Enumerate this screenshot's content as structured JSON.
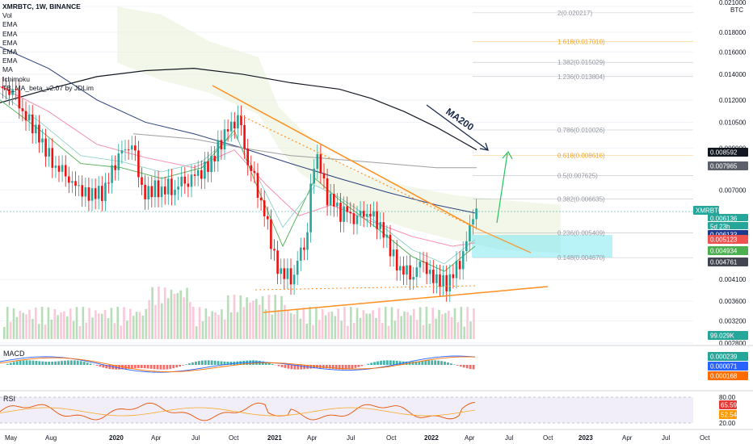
{
  "header": {
    "symbol": "XMRBTC, 1W, BINANCE",
    "indicators": [
      "Vol",
      "EMA",
      "EMA",
      "EMA",
      "EMA",
      "EMA",
      "MA",
      "Ichimoku",
      "TB_MA_beta_v2.07 by JDLim"
    ]
  },
  "price_axis": {
    "currency": "BTC",
    "ticks": [
      "0.021000",
      "0.018000",
      "0.016000",
      "0.014000",
      "0.012000",
      "0.010500",
      "0.009000",
      "0.007000",
      "0.004100",
      "0.003600",
      "0.003200",
      "0.002800"
    ]
  },
  "fib_levels": [
    {
      "label": "2(0.020217)",
      "color": "#9598a1"
    },
    {
      "label": "1.618(0.017010)",
      "color": "#f7a21b"
    },
    {
      "label": "1.382(0.015029)",
      "color": "#9598a1"
    },
    {
      "label": "1.236(0.013804)",
      "color": "#9598a1"
    },
    {
      "label": "0.786(0.010026)",
      "color": "#9598a1"
    },
    {
      "label": "0.618(0.008616)",
      "color": "#f7a21b"
    },
    {
      "label": "0.5(0.007625)",
      "color": "#9598a1"
    },
    {
      "label": "0.382(0.006635)",
      "color": "#9598a1"
    },
    {
      "label": "0.236(0.005409)",
      "color": "#9598a1"
    },
    {
      "label": "0.148(0.004670)",
      "color": "#9598a1"
    }
  ],
  "price_badges": [
    {
      "text": "0.008592",
      "bg": "#131722",
      "fg": "#ffffff"
    },
    {
      "text": "0.007965",
      "bg": "#5d606b",
      "fg": "#ffffff"
    },
    {
      "text": "XMRBTC",
      "bg": "#26a69a",
      "fg": "#ffffff"
    },
    {
      "text": "0.006136",
      "bg": "#26a69a",
      "fg": "#ffffff"
    },
    {
      "text": "5d 23h",
      "bg": "#26a69a",
      "fg": "#ffffff"
    },
    {
      "text": "0.006133",
      "bg": "#1e3a8a",
      "fg": "#ffffff"
    },
    {
      "text": "0.005123",
      "bg": "#ef5350",
      "fg": "#ffffff"
    },
    {
      "text": "0.004934",
      "bg": "#4caf50",
      "fg": "#ffffff"
    },
    {
      "text": "0.004761",
      "bg": "#434651",
      "fg": "#ffffff"
    },
    {
      "text": "99.029K",
      "bg": "#26a69a",
      "fg": "#ffffff"
    }
  ],
  "annotation": "MA200",
  "macd": {
    "label": "MACD",
    "badges": [
      {
        "text": "0.000239",
        "bg": "#26a69a"
      },
      {
        "text": "0.000071",
        "bg": "#2962ff"
      },
      {
        "text": "0.000168",
        "bg": "#ff6d00"
      }
    ]
  },
  "rsi": {
    "label": "RSI",
    "ticks": [
      "80.00",
      "20.00"
    ],
    "badges": [
      {
        "text": "65.59",
        "bg": "#e53935"
      },
      {
        "text": "52.54",
        "bg": "#ff9800"
      }
    ]
  },
  "time_axis": [
    "May",
    "Aug",
    "2020",
    "Apr",
    "Jul",
    "Oct",
    "2021",
    "Apr",
    "Jul",
    "Oct",
    "2022",
    "Apr",
    "Jul",
    "Oct",
    "2023",
    "Apr",
    "Jul",
    "Oct"
  ],
  "chart_data": {
    "type": "candlestick",
    "scale": "log",
    "ylim": [
      0.0028,
      0.021
    ],
    "x": [
      "2019-05",
      "2019-06",
      "2019-07",
      "2019-08",
      "2019-09",
      "2019-10",
      "2019-11",
      "2019-12",
      "2020-01",
      "2020-02",
      "2020-03",
      "2020-04",
      "2020-05",
      "2020-06",
      "2020-07",
      "2020-08",
      "2020-09",
      "2020-10",
      "2020-11",
      "2020-12",
      "2021-01",
      "2021-02",
      "2021-03",
      "2021-04",
      "2021-05",
      "2021-06",
      "2021-07",
      "2021-08",
      "2021-09",
      "2021-10",
      "2021-11",
      "2021-12",
      "2022-01",
      "2022-02",
      "2022-03",
      "2022-04"
    ],
    "close": [
      0.0125,
      0.0108,
      0.0098,
      0.0085,
      0.0079,
      0.0072,
      0.0068,
      0.0069,
      0.0083,
      0.009,
      0.0068,
      0.0071,
      0.0072,
      0.0075,
      0.0078,
      0.0082,
      0.0095,
      0.0105,
      0.0078,
      0.0062,
      0.0045,
      0.0042,
      0.005,
      0.0085,
      0.0065,
      0.006,
      0.0058,
      0.006,
      0.0055,
      0.0046,
      0.0043,
      0.0046,
      0.0041,
      0.004,
      0.0046,
      0.0061
    ],
    "volume_last": "99.029K",
    "macd_hist_last": 0.000239,
    "macd_line_last": 7.1e-05,
    "macd_signal_last": 0.000168,
    "rsi_last": 65.59,
    "rsi_ma_last": 52.54
  }
}
